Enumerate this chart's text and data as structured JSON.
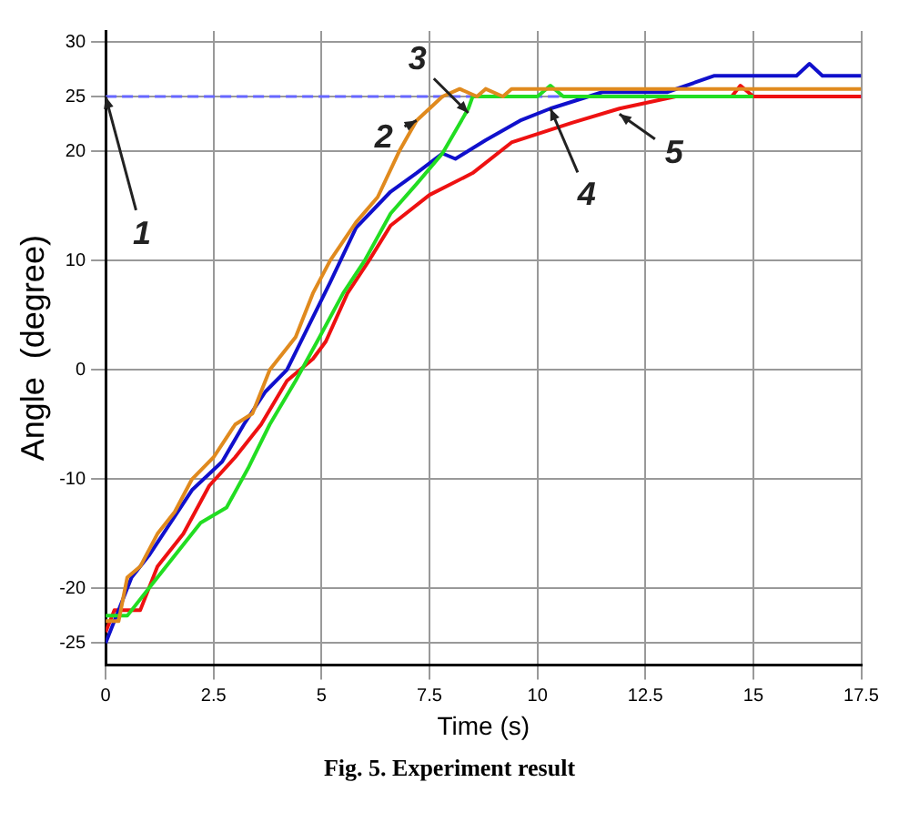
{
  "chart_data": {
    "type": "line",
    "xlabel": "Time (s)",
    "ylabel": "Angle  (degree)",
    "xlim": [
      0,
      17.5
    ],
    "xticks": [
      0,
      2.5,
      5,
      7.5,
      10,
      12.5,
      15,
      17.5
    ],
    "ylim": [
      -27,
      31
    ],
    "yticks": [
      -25,
      -20,
      -10,
      0,
      10,
      20,
      25,
      30
    ],
    "grid": true,
    "legend": false,
    "marker": "none",
    "line_style": "solid",
    "series": [
      {
        "color": "#e08a1e",
        "x": [
          0,
          0.3,
          0.5,
          0.8,
          1.2,
          1.6,
          2.0,
          2.5,
          3.0,
          3.4,
          3.8,
          4.4,
          4.8,
          5.2,
          5.8,
          6.3,
          6.8,
          7.2,
          7.8,
          8.2,
          8.6,
          8.8,
          9.2,
          9.4,
          17.5
        ],
        "values": [
          -23,
          -23,
          -19,
          -18,
          -15,
          -13,
          -10,
          -8,
          -5,
          -4,
          0,
          3,
          7,
          10,
          13.5,
          15.8,
          20,
          22.8,
          25,
          25.7,
          25,
          25.7,
          25,
          25.7,
          25.7
        ]
      },
      {
        "color": "#22dd22",
        "x": [
          0,
          0.5,
          1.0,
          1.6,
          2.2,
          2.8,
          3.3,
          3.8,
          4.4,
          4.9,
          5.5,
          6.0,
          6.6,
          7.2,
          7.8,
          8.4,
          8.5,
          10,
          10.3,
          10.6,
          15
        ],
        "values": [
          -22.5,
          -22.5,
          -20,
          -17,
          -14,
          -12.6,
          -9,
          -5,
          -1,
          2.6,
          7,
          10,
          14.3,
          17,
          19.8,
          23.9,
          25,
          25,
          26,
          25,
          25
        ]
      },
      {
        "color": "#1010cc",
        "x": [
          0,
          0.6,
          1.0,
          1.5,
          2.0,
          2.7,
          3.2,
          3.7,
          4.2,
          4.7,
          5.2,
          5.8,
          6.6,
          7.2,
          7.8,
          8.1,
          8.8,
          9.6,
          10.3,
          11.5,
          13,
          14.1,
          16,
          16.3,
          16.6,
          17.5
        ],
        "values": [
          -25,
          -19,
          -17,
          -14,
          -11,
          -8.4,
          -5,
          -2,
          0,
          4,
          8,
          13,
          16.3,
          18,
          19.8,
          19.3,
          21,
          22.8,
          23.9,
          25.4,
          25.4,
          26.9,
          26.9,
          28,
          26.9,
          26.9
        ]
      },
      {
        "color": "#ee1111",
        "x": [
          0,
          0.2,
          0.8,
          1.2,
          1.8,
          2.4,
          3.0,
          3.6,
          4.2,
          4.8,
          5.1,
          5.6,
          6.1,
          6.6,
          7.5,
          8.5,
          9.4,
          10.8,
          11.9,
          13.2,
          14.5,
          14.7,
          15,
          17.5
        ],
        "values": [
          -24,
          -22,
          -22,
          -18,
          -15,
          -10.6,
          -8,
          -5,
          -1,
          1,
          2.6,
          7,
          10,
          13.2,
          16,
          18,
          20.8,
          22.6,
          23.9,
          25,
          25,
          26,
          25,
          25
        ]
      }
    ],
    "ref_lines": [
      {
        "axis": "y",
        "value": 25,
        "color": "#6666ff",
        "line_style": "dashed"
      }
    ],
    "annotations": [
      {
        "text": "1",
        "x": 0,
        "y": 25
      },
      {
        "text": "2",
        "x": 7.2,
        "y": 22.8
      },
      {
        "text": "3",
        "x": 8.4,
        "y": 23.5
      },
      {
        "text": "4",
        "x": 10.3,
        "y": 23.9
      },
      {
        "text": "5",
        "x": 11.9,
        "y": 23.4
      },
      "Fig. 5. Experiment result"
    ]
  }
}
